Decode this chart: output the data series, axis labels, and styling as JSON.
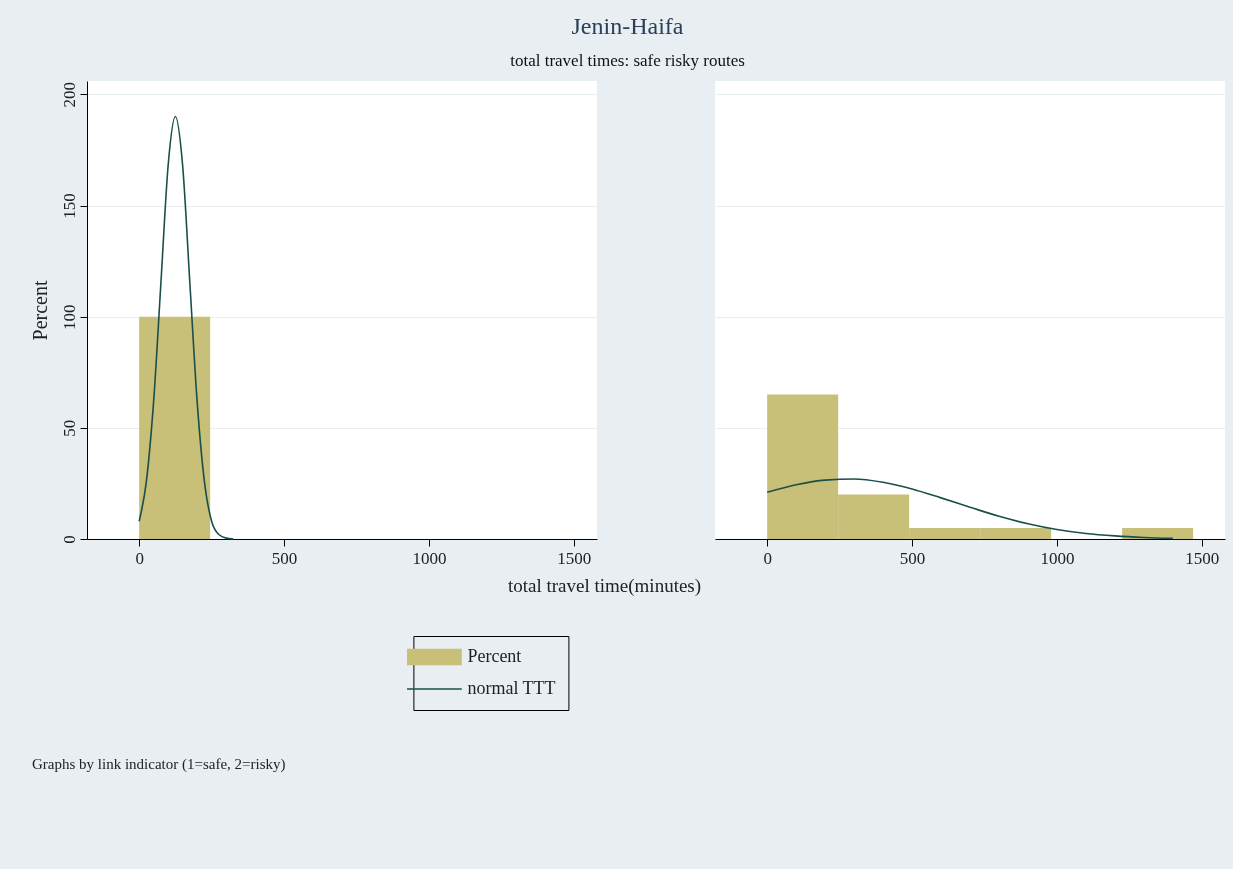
{
  "chart_data": [
    {
      "type": "histogram",
      "title": "Jenin-Haifa",
      "subtitle": "total travel times: safe risky routes",
      "xlabel": "total travel time(minutes)",
      "ylabel": "Percent",
      "annotations": [
        "Graphs by link indicator (1=safe, 2=risky)"
      ],
      "bins": [
        0,
        245
      ],
      "series": [
        {
          "name": "Percent",
          "color": "#c8bf78",
          "values": [
            100
          ]
        },
        {
          "type": "line",
          "name": "normal TTT",
          "color": "#1a4f4a",
          "x": [
            0,
            25,
            50,
            75,
            100,
            125,
            150,
            175,
            200,
            225,
            250,
            275,
            300,
            325
          ],
          "values": [
            8,
            26,
            62,
            115,
            168,
            190,
            168,
            115,
            62,
            26,
            8,
            2,
            0.4,
            0
          ]
        }
      ],
      "xlim": [
        -180,
        1580
      ],
      "ylim": [
        0,
        206
      ],
      "xticks": [
        0,
        500,
        1000,
        1500
      ],
      "yticks": [
        0,
        50,
        100,
        150,
        200
      ],
      "grid": "y",
      "legend": "bottom"
    },
    {
      "type": "histogram",
      "bins": [
        0,
        245,
        490,
        735,
        980,
        1225,
        1470
      ],
      "series": [
        {
          "color": "#c8bf78",
          "values": [
            65,
            20,
            5,
            5,
            0,
            5
          ]
        },
        {
          "type": "line",
          "color": "#1a4f4a",
          "x": [
            0,
            100,
            200,
            300,
            400,
            500,
            600,
            700,
            800,
            900,
            1000,
            1100,
            1200,
            1300,
            1400
          ],
          "values": [
            21,
            24.4,
            26.5,
            27,
            25.5,
            22.5,
            18.5,
            14.3,
            10.2,
            6.9,
            4.3,
            2.5,
            1.4,
            0.7,
            0.3
          ]
        }
      ],
      "xlim": [
        -180,
        1580
      ],
      "ylim": [
        0,
        206
      ],
      "xticks": [
        0,
        500,
        1000,
        1500
      ],
      "yticks": [
        0,
        50,
        100,
        150,
        200
      ],
      "grid": "y",
      "tick_labels": "x"
    }
  ]
}
